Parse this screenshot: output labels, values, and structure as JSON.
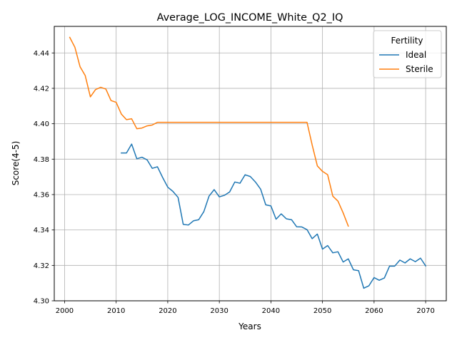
{
  "chart_data": {
    "type": "line",
    "title": "Average_LOG_INCOME_White_Q2_IQ",
    "xlabel": "Years",
    "ylabel": "Score(4-5)",
    "xlim": [
      1998,
      2074
    ],
    "ylim": [
      4.3,
      4.455
    ],
    "xticks": [
      2000,
      2010,
      2020,
      2030,
      2040,
      2050,
      2060,
      2070
    ],
    "yticks": [
      4.3,
      4.32,
      4.34,
      4.36,
      4.38,
      4.4,
      4.42,
      4.44
    ],
    "xtick_labels": [
      "2000",
      "2010",
      "2020",
      "2030",
      "2040",
      "2050",
      "2060",
      "2070"
    ],
    "ytick_labels": [
      "4.30",
      "4.32",
      "4.34",
      "4.36",
      "4.38",
      "4.40",
      "4.42",
      "4.44"
    ],
    "grid": true,
    "legend": {
      "title": "Fertility",
      "placement": "top-right"
    },
    "series": [
      {
        "name": "Ideal",
        "color": "#1f77b4",
        "x": [
          2011,
          2012,
          2013,
          2014,
          2015,
          2016,
          2017,
          2018,
          2019,
          2020,
          2021,
          2022,
          2023,
          2024,
          2025,
          2026,
          2027,
          2028,
          2029,
          2030,
          2031,
          2032,
          2033,
          2034,
          2035,
          2036,
          2037,
          2038,
          2039,
          2040,
          2041,
          2042,
          2043,
          2044,
          2045,
          2046,
          2047,
          2048,
          2049,
          2050,
          2051,
          2052,
          2053,
          2054,
          2055,
          2056,
          2057,
          2058,
          2059,
          2060,
          2061,
          2062,
          2063,
          2064,
          2065,
          2066,
          2067,
          2068,
          2069,
          2070
        ],
        "y": [
          4.3835,
          4.3835,
          4.3885,
          4.3802,
          4.3811,
          4.3796,
          4.3748,
          4.3757,
          4.3697,
          4.3642,
          4.3618,
          4.3584,
          4.3432,
          4.3428,
          4.3452,
          4.3458,
          4.3504,
          4.3591,
          4.3628,
          4.3587,
          4.3596,
          4.3615,
          4.3671,
          4.3664,
          4.3712,
          4.3702,
          4.3671,
          4.3631,
          4.3542,
          4.3536,
          4.3461,
          4.3491,
          4.3463,
          4.3458,
          4.3418,
          4.3417,
          4.3402,
          4.3351,
          4.3377,
          4.3292,
          4.3312,
          4.3271,
          4.3277,
          4.3219,
          4.3237,
          4.3175,
          4.317,
          4.3071,
          4.3085,
          4.3131,
          4.3116,
          4.3129,
          4.3196,
          4.3196,
          4.323,
          4.3214,
          4.3237,
          4.3221,
          4.3241,
          4.3197
        ]
      },
      {
        "name": "Sterile",
        "color": "#ff7f0e",
        "x": [
          2001,
          2002,
          2003,
          2004,
          2005,
          2006,
          2007,
          2008,
          2009,
          2010,
          2011,
          2012,
          2013,
          2014,
          2015,
          2016,
          2017,
          2018,
          2019,
          2020,
          2021,
          2022,
          2023,
          2024,
          2025,
          2026,
          2027,
          2028,
          2029,
          2030,
          2031,
          2032,
          2033,
          2034,
          2035,
          2036,
          2037,
          2038,
          2039,
          2040,
          2041,
          2042,
          2043,
          2044,
          2045,
          2046,
          2047,
          2048,
          2049,
          2050,
          2051,
          2052,
          2053,
          2054,
          2055
        ],
        "y": [
          4.4488,
          4.4432,
          4.4322,
          4.4272,
          4.4152,
          4.4193,
          4.4206,
          4.4196,
          4.4131,
          4.4121,
          4.4055,
          4.4023,
          4.4028,
          4.3972,
          4.3976,
          4.3988,
          4.3993,
          4.4008,
          4.4008,
          4.4008,
          4.4008,
          4.4008,
          4.4008,
          4.4008,
          4.4008,
          4.4008,
          4.4008,
          4.4008,
          4.4008,
          4.4008,
          4.4008,
          4.4008,
          4.4008,
          4.4008,
          4.4008,
          4.4008,
          4.4008,
          4.4008,
          4.4008,
          4.4008,
          4.4008,
          4.4008,
          4.4008,
          4.4008,
          4.4008,
          4.4008,
          4.4008,
          4.388,
          4.3762,
          4.3731,
          4.3712,
          4.3591,
          4.3563,
          4.3497,
          4.3422
        ]
      }
    ]
  }
}
